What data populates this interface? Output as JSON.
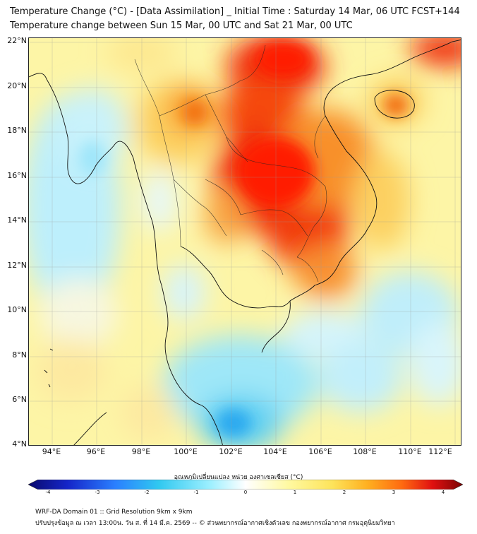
{
  "title_line1": "Temperature Change (°C) - [Data Assimilation] _ Initial Time : Saturday 14 Mar, 06 UTC FCST+144",
  "title_line2": "Temperature change between Sun 15 Mar, 00 UTC and Sat 21 Mar, 00 UTC",
  "lat_labels": [
    "22°N",
    "20°N",
    "18°N",
    "16°N",
    "14°N",
    "12°N",
    "10°N",
    "8°N",
    "6°N",
    "4°N"
  ],
  "lon_labels": [
    "94°E",
    "96°E",
    "98°E",
    "100°E",
    "102°E",
    "104°E",
    "106°E",
    "108°E",
    "110°E",
    "112°E"
  ],
  "colorbar": {
    "title": "อุณหภูมิเปลี่ยนแปลง หน่วย องศาเซลเซียส (°C)",
    "ticks": [
      "-4",
      "-3",
      "-2",
      "-1",
      "0",
      "1",
      "2",
      "3",
      "4"
    ],
    "colors": [
      "#0a0a6e",
      "#1525c8",
      "#2a7fff",
      "#30c8f0",
      "#9ff0ff",
      "#ffffff",
      "#fff9a0",
      "#fde35a",
      "#ffb020",
      "#ff6a10",
      "#e01010",
      "#7a0505"
    ]
  },
  "footer_line1": "WRF-DA Domain 01 :: Grid Resolution 9km x 9km",
  "footer_line2": "ปรับปรุงข้อมูล ณ เวลา 13:00น. วัน ส. ที่ 14 มี.ค. 2569 -- © ส่วนพยากรณ์อากาศเชิงตัวเลข กองพยากรณ์อากาศ กรมอุตุนิยมวิทยา"
}
